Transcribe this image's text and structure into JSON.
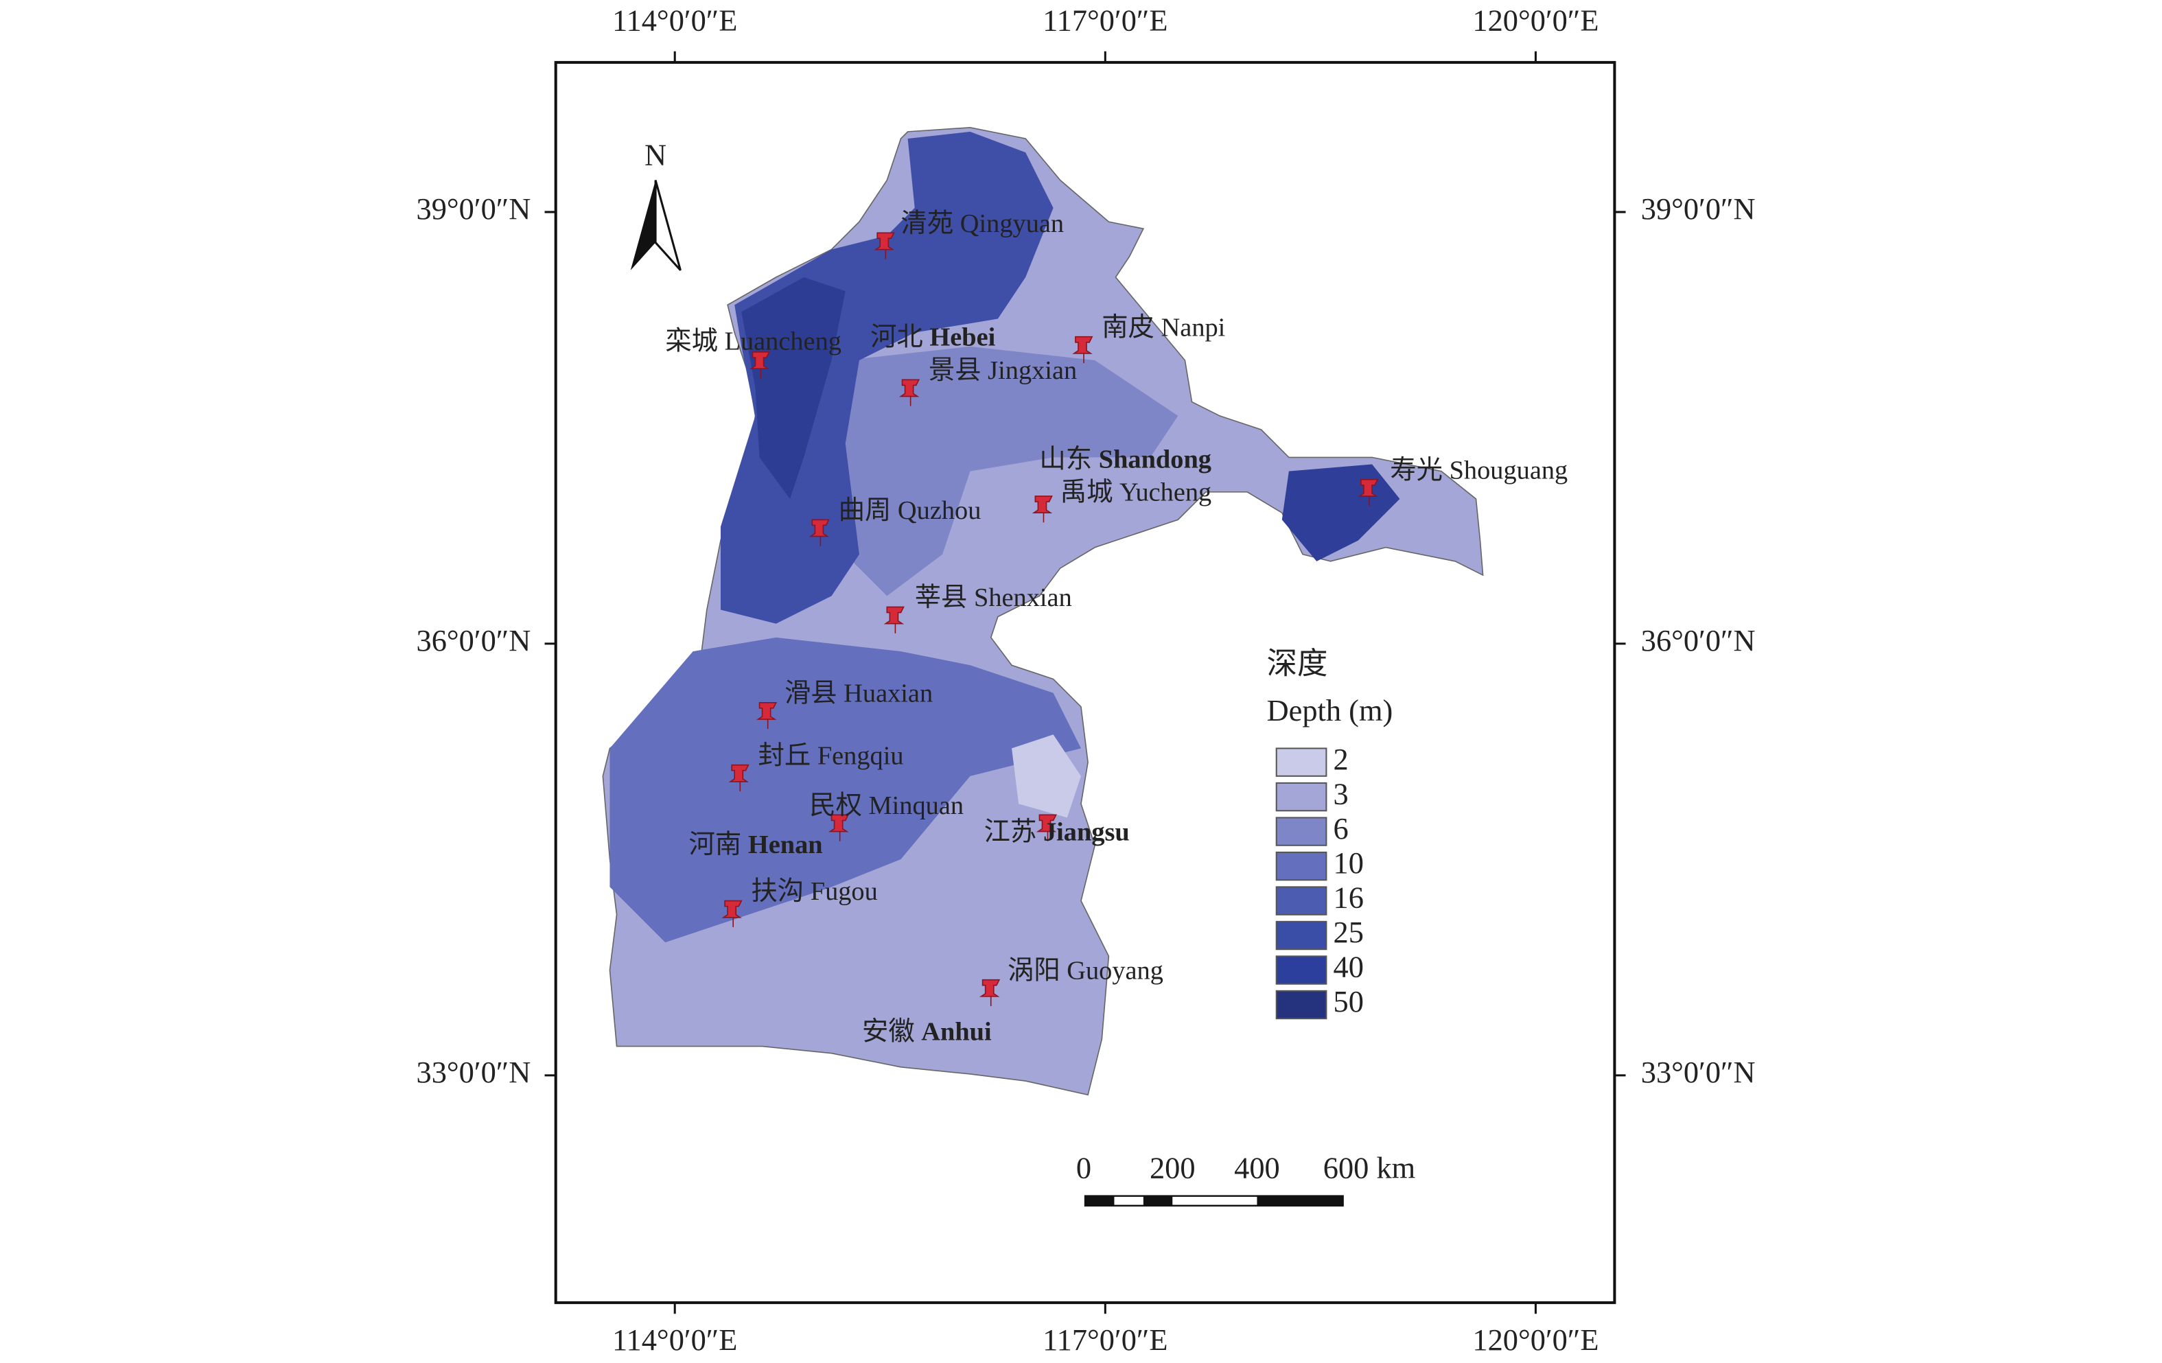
{
  "map": {
    "north": "N",
    "lon_range": [
      113.17,
      120.55
    ],
    "lat_range": [
      31.42,
      40.04
    ],
    "lon_ticks": [
      {
        "value": 114,
        "label": "114°0′0″E"
      },
      {
        "value": 117,
        "label": "117°0′0″E"
      },
      {
        "value": 120,
        "label": "120°0′0″E"
      }
    ],
    "lat_ticks": [
      {
        "value": 39,
        "label": "39°0′0″N"
      },
      {
        "value": 36,
        "label": "36°0′0″N"
      },
      {
        "value": 33,
        "label": "33°0′0″N"
      }
    ],
    "legend": {
      "title_zh": "深度",
      "title_en": "Depth (m)",
      "items": [
        {
          "value": 2,
          "color": "#c9cbe8"
        },
        {
          "value": 3,
          "color": "#a3a6d6"
        },
        {
          "value": 6,
          "color": "#7f86c8"
        },
        {
          "value": 10,
          "color": "#6470bd"
        },
        {
          "value": 16,
          "color": "#4c5cb0"
        },
        {
          "value": 25,
          "color": "#3a4ea8"
        },
        {
          "value": 40,
          "color": "#2c3f9c"
        },
        {
          "value": 50,
          "color": "#25337e"
        }
      ]
    },
    "places": [
      {
        "name": "清苑 Qingyuan"
      },
      {
        "name": "栾城 Luancheng"
      },
      {
        "name": "南皮 Nanpi"
      },
      {
        "name": "景县 Jingxian"
      },
      {
        "name": "禹城 Yucheng"
      },
      {
        "name": "寿光 Shouguang"
      },
      {
        "name": "曲周 Quzhou"
      },
      {
        "name": "莘县 Shenxian"
      },
      {
        "name": "滑县 Huaxian"
      },
      {
        "name": "封丘 Fengqiu"
      },
      {
        "name": "民权 Minquan"
      },
      {
        "name": "扶沟 Fugou"
      },
      {
        "name": "涡阳 Guoyang"
      }
    ],
    "regions": [
      {
        "zh": "河北",
        "en": "Hebei"
      },
      {
        "zh": "山东",
        "en": "Shandong"
      },
      {
        "zh": "河南",
        "en": "Henan"
      },
      {
        "zh": "江苏",
        "en": "Jiangsu"
      },
      {
        "zh": "安徽",
        "en": "Anhui"
      }
    ],
    "scale_bar": [
      "0",
      "200",
      "400",
      "600 km"
    ]
  }
}
